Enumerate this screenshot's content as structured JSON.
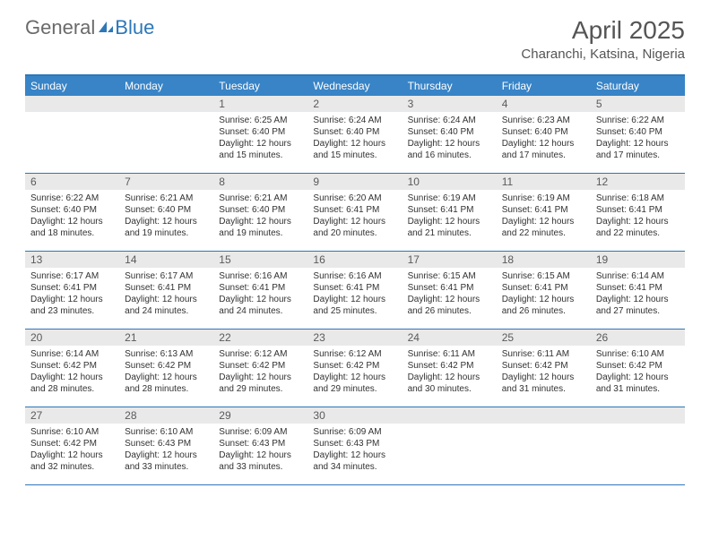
{
  "brand": {
    "word1": "General",
    "word2": "Blue"
  },
  "title": "April 2025",
  "location": "Charanchi, Katsina, Nigeria",
  "colors": {
    "header_bg": "#3884c7",
    "rule": "#2d77b8",
    "datebar_bg": "#e9e9e9",
    "text": "#323232",
    "muted": "#555555"
  },
  "typography": {
    "title_fontsize": 28,
    "location_fontsize": 15,
    "dayhead_fontsize": 12,
    "daynum_fontsize": 12,
    "body_fontsize": 10
  },
  "day_names": [
    "Sunday",
    "Monday",
    "Tuesday",
    "Wednesday",
    "Thursday",
    "Friday",
    "Saturday"
  ],
  "weeks": [
    [
      null,
      null,
      {
        "n": "1",
        "sunrise": "6:25 AM",
        "sunset": "6:40 PM",
        "dl": "12 hours and 15 minutes."
      },
      {
        "n": "2",
        "sunrise": "6:24 AM",
        "sunset": "6:40 PM",
        "dl": "12 hours and 15 minutes."
      },
      {
        "n": "3",
        "sunrise": "6:24 AM",
        "sunset": "6:40 PM",
        "dl": "12 hours and 16 minutes."
      },
      {
        "n": "4",
        "sunrise": "6:23 AM",
        "sunset": "6:40 PM",
        "dl": "12 hours and 17 minutes."
      },
      {
        "n": "5",
        "sunrise": "6:22 AM",
        "sunset": "6:40 PM",
        "dl": "12 hours and 17 minutes."
      }
    ],
    [
      {
        "n": "6",
        "sunrise": "6:22 AM",
        "sunset": "6:40 PM",
        "dl": "12 hours and 18 minutes."
      },
      {
        "n": "7",
        "sunrise": "6:21 AM",
        "sunset": "6:40 PM",
        "dl": "12 hours and 19 minutes."
      },
      {
        "n": "8",
        "sunrise": "6:21 AM",
        "sunset": "6:40 PM",
        "dl": "12 hours and 19 minutes."
      },
      {
        "n": "9",
        "sunrise": "6:20 AM",
        "sunset": "6:41 PM",
        "dl": "12 hours and 20 minutes."
      },
      {
        "n": "10",
        "sunrise": "6:19 AM",
        "sunset": "6:41 PM",
        "dl": "12 hours and 21 minutes."
      },
      {
        "n": "11",
        "sunrise": "6:19 AM",
        "sunset": "6:41 PM",
        "dl": "12 hours and 22 minutes."
      },
      {
        "n": "12",
        "sunrise": "6:18 AM",
        "sunset": "6:41 PM",
        "dl": "12 hours and 22 minutes."
      }
    ],
    [
      {
        "n": "13",
        "sunrise": "6:17 AM",
        "sunset": "6:41 PM",
        "dl": "12 hours and 23 minutes."
      },
      {
        "n": "14",
        "sunrise": "6:17 AM",
        "sunset": "6:41 PM",
        "dl": "12 hours and 24 minutes."
      },
      {
        "n": "15",
        "sunrise": "6:16 AM",
        "sunset": "6:41 PM",
        "dl": "12 hours and 24 minutes."
      },
      {
        "n": "16",
        "sunrise": "6:16 AM",
        "sunset": "6:41 PM",
        "dl": "12 hours and 25 minutes."
      },
      {
        "n": "17",
        "sunrise": "6:15 AM",
        "sunset": "6:41 PM",
        "dl": "12 hours and 26 minutes."
      },
      {
        "n": "18",
        "sunrise": "6:15 AM",
        "sunset": "6:41 PM",
        "dl": "12 hours and 26 minutes."
      },
      {
        "n": "19",
        "sunrise": "6:14 AM",
        "sunset": "6:41 PM",
        "dl": "12 hours and 27 minutes."
      }
    ],
    [
      {
        "n": "20",
        "sunrise": "6:14 AM",
        "sunset": "6:42 PM",
        "dl": "12 hours and 28 minutes."
      },
      {
        "n": "21",
        "sunrise": "6:13 AM",
        "sunset": "6:42 PM",
        "dl": "12 hours and 28 minutes."
      },
      {
        "n": "22",
        "sunrise": "6:12 AM",
        "sunset": "6:42 PM",
        "dl": "12 hours and 29 minutes."
      },
      {
        "n": "23",
        "sunrise": "6:12 AM",
        "sunset": "6:42 PM",
        "dl": "12 hours and 29 minutes."
      },
      {
        "n": "24",
        "sunrise": "6:11 AM",
        "sunset": "6:42 PM",
        "dl": "12 hours and 30 minutes."
      },
      {
        "n": "25",
        "sunrise": "6:11 AM",
        "sunset": "6:42 PM",
        "dl": "12 hours and 31 minutes."
      },
      {
        "n": "26",
        "sunrise": "6:10 AM",
        "sunset": "6:42 PM",
        "dl": "12 hours and 31 minutes."
      }
    ],
    [
      {
        "n": "27",
        "sunrise": "6:10 AM",
        "sunset": "6:42 PM",
        "dl": "12 hours and 32 minutes."
      },
      {
        "n": "28",
        "sunrise": "6:10 AM",
        "sunset": "6:43 PM",
        "dl": "12 hours and 33 minutes."
      },
      {
        "n": "29",
        "sunrise": "6:09 AM",
        "sunset": "6:43 PM",
        "dl": "12 hours and 33 minutes."
      },
      {
        "n": "30",
        "sunrise": "6:09 AM",
        "sunset": "6:43 PM",
        "dl": "12 hours and 34 minutes."
      },
      null,
      null,
      null
    ]
  ]
}
